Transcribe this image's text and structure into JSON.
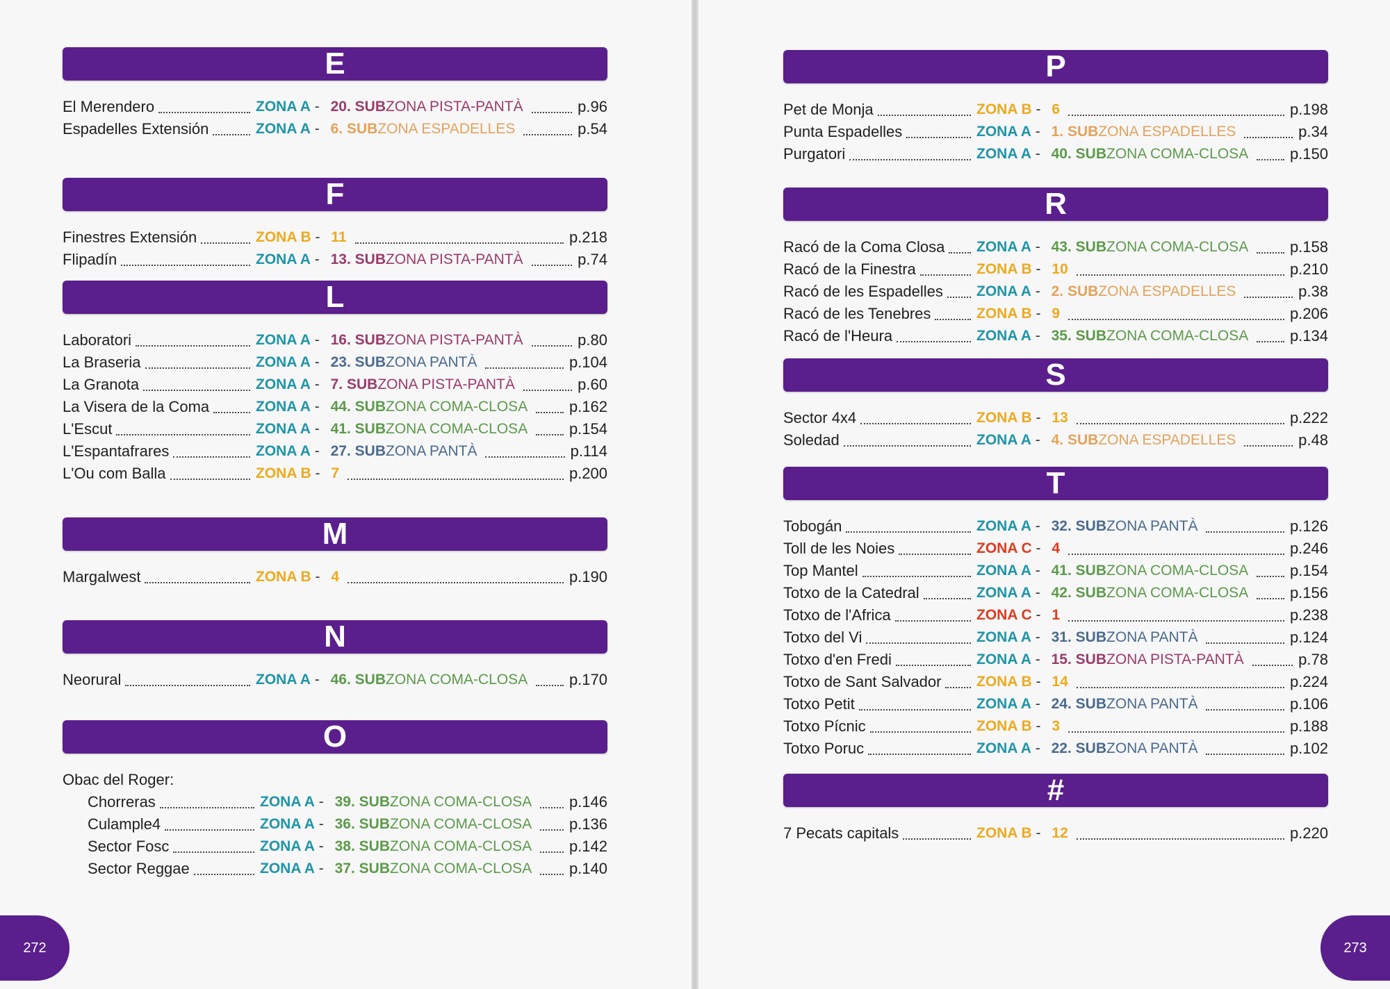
{
  "colors": {
    "bar": "#5a1f8c",
    "zona_a": "#1e95a8",
    "zona_b": "#eeaa1c",
    "zona_c": "#e03a1c",
    "pista_panta": "#9a3b6a",
    "espadelles": "#e3a25a",
    "coma_closa": "#5c9a4a",
    "panta": "#4a6a8c"
  },
  "left": {
    "page_number": "272",
    "sections": [
      {
        "letter": "E",
        "entries": [
          {
            "name": "El Merendero",
            "zone": "ZONA A",
            "zone_color": "zona_a",
            "num": "20.",
            "sub": "SUB",
            "subname": "ZONA PISTA-PANTÀ",
            "sub_color": "pista_panta",
            "page": "p.96"
          },
          {
            "name": "Espadelles Extensión",
            "zone": "ZONA A",
            "zone_color": "zona_a",
            "num": "6.",
            "sub": "SUB",
            "subname": "ZONA ESPADELLES",
            "sub_color": "espadelles",
            "page": "p.54"
          }
        ]
      },
      {
        "letter": "F",
        "entries": [
          {
            "name": "Finestres Extensión",
            "zone": "ZONA B",
            "zone_color": "zona_b",
            "num": "11",
            "sub": "",
            "subname": "",
            "sub_color": "zona_b",
            "page": "p.218"
          },
          {
            "name": "Flipadín",
            "zone": "ZONA A",
            "zone_color": "zona_a",
            "num": "13.",
            "sub": "SUB",
            "subname": "ZONA PISTA-PANTÀ",
            "sub_color": "pista_panta",
            "page": "p.74"
          }
        ]
      },
      {
        "letter": "L",
        "entries": [
          {
            "name": "Laboratori",
            "zone": "ZONA A",
            "zone_color": "zona_a",
            "num": "16.",
            "sub": "SUB",
            "subname": "ZONA PISTA-PANTÀ",
            "sub_color": "pista_panta",
            "page": "p.80"
          },
          {
            "name": "La Braseria",
            "zone": "ZONA A",
            "zone_color": "zona_a",
            "num": "23.",
            "sub": "SUB",
            "subname": "ZONA PANTÀ",
            "sub_color": "panta",
            "page": "p.104"
          },
          {
            "name": "La Granota",
            "zone": "ZONA A",
            "zone_color": "zona_a",
            "num": "7.",
            "sub": "SUB",
            "subname": "ZONA PISTA-PANTÀ",
            "sub_color": "pista_panta",
            "page": "p.60"
          },
          {
            "name": "La Visera de la Coma",
            "zone": "ZONA A",
            "zone_color": "zona_a",
            "num": "44.",
            "sub": "SUB",
            "subname": "ZONA COMA-CLOSA",
            "sub_color": "coma_closa",
            "page": "p.162"
          },
          {
            "name": "L'Escut",
            "zone": "ZONA A",
            "zone_color": "zona_a",
            "num": "41.",
            "sub": "SUB",
            "subname": "ZONA COMA-CLOSA",
            "sub_color": "coma_closa",
            "page": "p.154"
          },
          {
            "name": "L'Espantafrares",
            "zone": "ZONA A",
            "zone_color": "zona_a",
            "num": "27.",
            "sub": "SUB",
            "subname": "ZONA PANTÀ",
            "sub_color": "panta",
            "page": "p.114"
          },
          {
            "name": "L'Ou com Balla",
            "zone": "ZONA B",
            "zone_color": "zona_b",
            "num": "7",
            "sub": "",
            "subname": "",
            "sub_color": "zona_b",
            "page": "p.200"
          }
        ]
      },
      {
        "letter": "M",
        "entries": [
          {
            "name": "Margalwest",
            "zone": "ZONA B",
            "zone_color": "zona_b",
            "num": "4",
            "sub": "",
            "subname": "",
            "sub_color": "zona_b",
            "page": "p.190"
          }
        ]
      },
      {
        "letter": "N",
        "entries": [
          {
            "name": "Neorural",
            "zone": "ZONA A",
            "zone_color": "zona_a",
            "num": "46.",
            "sub": "SUB",
            "subname": "ZONA COMA-CLOSA",
            "sub_color": "coma_closa",
            "page": "p.170"
          }
        ]
      },
      {
        "letter": "O",
        "group": "Obac del Roger:",
        "entries": [
          {
            "name": "Chorreras",
            "zone": "ZONA A",
            "zone_color": "zona_a",
            "num": "39.",
            "sub": "SUB",
            "subname": "ZONA COMA-CLOSA",
            "sub_color": "coma_closa",
            "page": "p.146"
          },
          {
            "name": "Culample4",
            "zone": "ZONA A",
            "zone_color": "zona_a",
            "num": "36.",
            "sub": "SUB",
            "subname": "ZONA COMA-CLOSA",
            "sub_color": "coma_closa",
            "page": "p.136"
          },
          {
            "name": "Sector Fosc",
            "zone": "ZONA A",
            "zone_color": "zona_a",
            "num": "38.",
            "sub": "SUB",
            "subname": "ZONA COMA-CLOSA",
            "sub_color": "coma_closa",
            "page": "p.142"
          },
          {
            "name": "Sector Reggae",
            "zone": "ZONA A",
            "zone_color": "zona_a",
            "num": "37.",
            "sub": "SUB",
            "subname": "ZONA COMA-CLOSA",
            "sub_color": "coma_closa",
            "page": "p.140"
          }
        ]
      }
    ]
  },
  "right": {
    "page_number": "273",
    "sections": [
      {
        "letter": "P",
        "entries": [
          {
            "name": "Pet de Monja",
            "zone": "ZONA B",
            "zone_color": "zona_b",
            "num": "6",
            "sub": "",
            "subname": "",
            "sub_color": "zona_b",
            "page": "p.198"
          },
          {
            "name": "Punta Espadelles",
            "zone": "ZONA A",
            "zone_color": "zona_a",
            "num": "1.",
            "sub": "SUB",
            "subname": "ZONA ESPADELLES",
            "sub_color": "espadelles",
            "page": "p.34"
          },
          {
            "name": "Purgatori",
            "zone": "ZONA A",
            "zone_color": "zona_a",
            "num": "40.",
            "sub": "SUB",
            "subname": "ZONA COMA-CLOSA",
            "sub_color": "coma_closa",
            "page": "p.150"
          }
        ]
      },
      {
        "letter": "R",
        "entries": [
          {
            "name": "Racó de la Coma Closa",
            "zone": "ZONA A",
            "zone_color": "zona_a",
            "num": "43.",
            "sub": "SUB",
            "subname": "ZONA COMA-CLOSA",
            "sub_color": "coma_closa",
            "page": "p.158"
          },
          {
            "name": "Racó de la Finestra",
            "zone": "ZONA B",
            "zone_color": "zona_b",
            "num": "10",
            "sub": "",
            "subname": "",
            "sub_color": "zona_b",
            "page": "p.210"
          },
          {
            "name": "Racó de les Espadelles",
            "zone": "ZONA A",
            "zone_color": "zona_a",
            "num": "2.",
            "sub": "SUB",
            "subname": "ZONA ESPADELLES",
            "sub_color": "espadelles",
            "page": "p.38"
          },
          {
            "name": "Racó de les Tenebres",
            "zone": "ZONA B",
            "zone_color": "zona_b",
            "num": "9",
            "sub": "",
            "subname": "",
            "sub_color": "zona_b",
            "page": "p.206"
          },
          {
            "name": "Racó de l'Heura",
            "zone": "ZONA A",
            "zone_color": "zona_a",
            "num": "35.",
            "sub": "SUB",
            "subname": "ZONA COMA-CLOSA",
            "sub_color": "coma_closa",
            "page": "p.134"
          }
        ]
      },
      {
        "letter": "S",
        "entries": [
          {
            "name": "Sector 4x4",
            "zone": "ZONA B",
            "zone_color": "zona_b",
            "num": "13",
            "sub": "",
            "subname": "",
            "sub_color": "zona_b",
            "page": "p.222"
          },
          {
            "name": "Soledad",
            "zone": "ZONA A",
            "zone_color": "zona_a",
            "num": "4.",
            "sub": "SUB",
            "subname": "ZONA ESPADELLES",
            "sub_color": "espadelles",
            "page": "p.48"
          }
        ]
      },
      {
        "letter": "T",
        "entries": [
          {
            "name": "Tobogán",
            "zone": "ZONA A",
            "zone_color": "zona_a",
            "num": "32.",
            "sub": "SUB",
            "subname": "ZONA PANTÀ",
            "sub_color": "panta",
            "page": "p.126"
          },
          {
            "name": "Toll de les Noies",
            "zone": "ZONA C",
            "zone_color": "zona_c",
            "num": "4",
            "sub": "",
            "subname": "",
            "sub_color": "zona_c",
            "page": "p.246"
          },
          {
            "name": "Top Mantel",
            "zone": "ZONA A",
            "zone_color": "zona_a",
            "num": "41.",
            "sub": "SUB",
            "subname": "ZONA COMA-CLOSA",
            "sub_color": "coma_closa",
            "page": "p.154"
          },
          {
            "name": "Totxo de la Catedral",
            "zone": "ZONA A",
            "zone_color": "zona_a",
            "num": "42.",
            "sub": "SUB",
            "subname": "ZONA COMA-CLOSA",
            "sub_color": "coma_closa",
            "page": "p.156"
          },
          {
            "name": "Totxo de l'Africa",
            "zone": "ZONA C",
            "zone_color": "zona_c",
            "num": "1",
            "sub": "",
            "subname": "",
            "sub_color": "zona_c",
            "page": "p.238"
          },
          {
            "name": "Totxo del Vi",
            "zone": "ZONA A",
            "zone_color": "zona_a",
            "num": "31.",
            "sub": "SUB",
            "subname": "ZONA PANTÀ",
            "sub_color": "panta",
            "page": "p.124"
          },
          {
            "name": "Totxo d'en Fredi",
            "zone": "ZONA A",
            "zone_color": "zona_a",
            "num": "15.",
            "sub": "SUB",
            "subname": "ZONA PISTA-PANTÀ",
            "sub_color": "pista_panta",
            "page": "p.78"
          },
          {
            "name": "Totxo de Sant Salvador",
            "zone": "ZONA B",
            "zone_color": "zona_b",
            "num": "14",
            "sub": "",
            "subname": "",
            "sub_color": "zona_b",
            "page": "p.224"
          },
          {
            "name": "Totxo Petit",
            "zone": "ZONA A",
            "zone_color": "zona_a",
            "num": "24.",
            "sub": "SUB",
            "subname": "ZONA PANTÀ",
            "sub_color": "panta",
            "page": "p.106"
          },
          {
            "name": "Totxo Pícnic",
            "zone": "ZONA B",
            "zone_color": "zona_b",
            "num": "3",
            "sub": "",
            "subname": "",
            "sub_color": "zona_b",
            "page": "p.188"
          },
          {
            "name": "Totxo Poruc",
            "zone": "ZONA A",
            "zone_color": "zona_a",
            "num": "22.",
            "sub": "SUB",
            "subname": "ZONA PANTÀ",
            "sub_color": "panta",
            "page": "p.102"
          }
        ]
      },
      {
        "letter": "#",
        "entries": [
          {
            "name": "7 Pecats capitals",
            "zone": "ZONA B",
            "zone_color": "zona_b",
            "num": "12",
            "sub": "",
            "subname": "",
            "sub_color": "zona_b",
            "page": "p.220"
          }
        ]
      }
    ]
  }
}
